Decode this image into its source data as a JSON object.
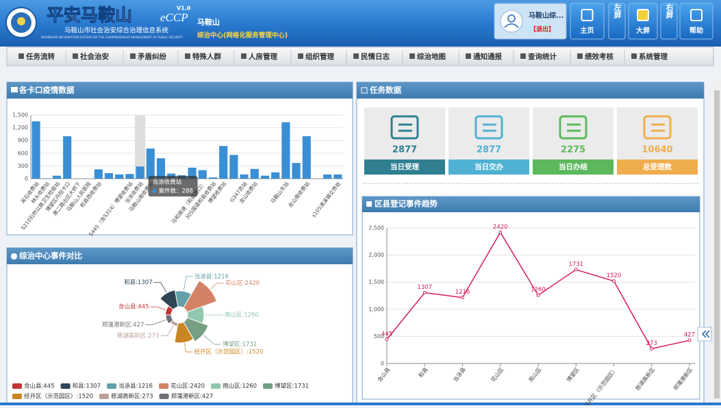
{
  "header": {
    "title": "平安马鞍山",
    "brand": "eCCP",
    "version": "V1.0",
    "subtitle": "马鞍山市社会治安综合治理信息系统",
    "subtitle_en": "MAANSHAN INFORMATION SYSTEM FOR THE COMPREHENSIVE MANAGEMENT OF PUBLIC SECURITY",
    "city": "马鞍山",
    "org": "综治中心(网格化服务管理中心)",
    "user": "马鞍山综...",
    "logout": "【退出】",
    "buttons": [
      "主页",
      "左屏",
      "大屏",
      "右屏",
      "帮助"
    ]
  },
  "nav": [
    "任务流转",
    "社会治安",
    "矛盾纠纷",
    "特殊人群",
    "人房管理",
    "组织管理",
    "民情日志",
    "综治地图",
    "通知通报",
    "查询统计",
    "绩效考核",
    "系统管理"
  ],
  "task": {
    "title": "任务数据",
    "cards": [
      {
        "value": 2877,
        "label": "当日受理",
        "color": "#2f7f91"
      },
      {
        "value": 2877,
        "label": "当日交办",
        "color": "#4fb2d3"
      },
      {
        "value": 2275,
        "label": "当日办结",
        "color": "#5cb85c"
      },
      {
        "value": 10640,
        "label": "总受理数",
        "color": "#f0ad4e"
      }
    ]
  },
  "chart_data": [
    {
      "type": "bar",
      "title": "各卡口疫情数据",
      "color": "#3a8fd4",
      "categories": [
        "采石收费站",
        "林头收费站",
        "S210石桥公路卫生检疫站",
        "博望区丹阳卡口",
        "黑二路出区大桥下",
        "马鞍山人民医院",
        "和县西收费站",
        null,
        null,
        "S445（含S314）博望收费站",
        "当涂收费站",
        "马鞍山南收费站",
        null,
        null,
        null,
        null,
        "马和高速（和县港口）",
        "305国道和县收费站",
        "博望收费站",
        null,
        "G347苏站",
        "含山收费站",
        null,
        null,
        "马鞍山东站",
        null,
        "含山南收费站",
        null,
        null,
        "s105清溪镇交界处"
      ],
      "values": [
        1350,
        10,
        70,
        1000,
        0,
        0,
        220,
        130,
        100,
        110,
        288,
        710,
        480,
        120,
        80,
        260,
        200,
        30,
        770,
        560,
        100,
        230,
        70,
        150,
        1330,
        370,
        1000,
        0,
        100,
        100
      ],
      "ylim": [
        0,
        1500
      ],
      "yticks": [
        0,
        300,
        600,
        900,
        {
          "value": 1200,
          "label": "1,200"
        },
        {
          "value": 1500,
          "label": "1,500"
        }
      ],
      "grid": true,
      "tooltip": {
        "title": "当涂收费站",
        "text": "案件数：288"
      }
    },
    {
      "type": "pie",
      "title": "综治中心事件对比",
      "rose": true,
      "values": [
        445,
        1307,
        1216,
        2420,
        1260,
        1731,
        1520,
        273,
        427
      ],
      "value_labels": [
        "含山县:445",
        "和县:1307",
        "当涂县:1216",
        "花山区:2420",
        "雨山区:1260",
        "博望区:1731",
        "经开区（示范园区）:1520",
        "慈湖高新区:273",
        "郑蒲港新区:427"
      ],
      "colors": [
        "#c23531",
        "#2f4554",
        "#61a0a8",
        "#d48265",
        "#91c7ae",
        "#749f83",
        "#ca8622",
        "#bda29a",
        "#6e7074"
      ]
    },
    {
      "type": "line",
      "title": "区县登记事件趋势",
      "color": "#d6195a",
      "categories": [
        "含山县",
        "和县",
        "当涂县",
        "花山区",
        "雨山区",
        "博望区",
        "经开区（示范园区）",
        "慈湖高新区",
        "郑蒲港新区"
      ],
      "values": [
        445,
        1307,
        1216,
        2420,
        1260,
        1731,
        1520,
        273,
        427
      ],
      "ylim": [
        0,
        2500
      ],
      "yticks": [
        0,
        500,
        {
          "value": 1000,
          "label": "1,000"
        },
        {
          "value": 1500,
          "label": "1,500"
        },
        {
          "value": 2000,
          "label": "2,000"
        },
        {
          "value": 2500,
          "label": "2,500"
        }
      ],
      "grid": true
    }
  ]
}
